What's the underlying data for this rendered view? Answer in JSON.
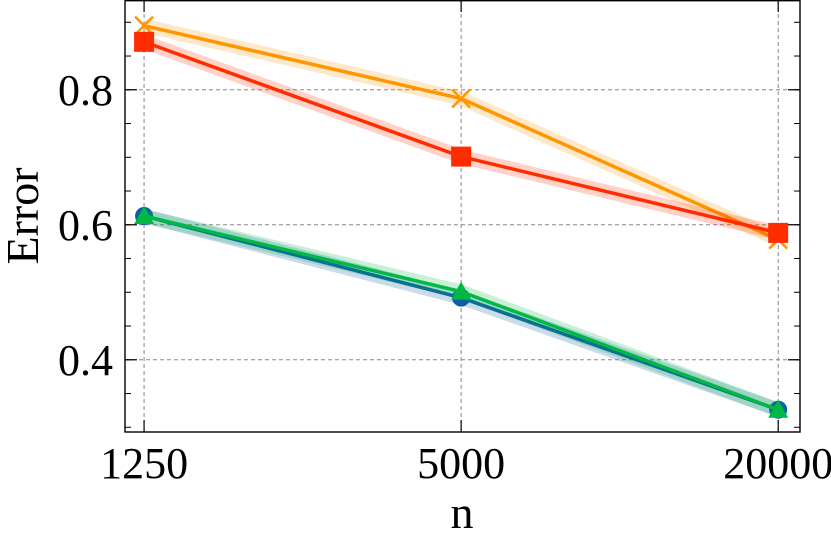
{
  "chart_data": {
    "type": "line",
    "title": "",
    "xlabel": "n",
    "ylabel": "Error",
    "x": [
      1250,
      5000,
      20000
    ],
    "x_tick_labels": [
      "1250",
      "5000",
      "20000"
    ],
    "x_scale": "log",
    "xlim": [
      1150,
      22000
    ],
    "ylim": [
      0.293,
      0.933
    ],
    "y_ticks": [
      0.4,
      0.6,
      0.8
    ],
    "y_tick_labels": [
      "0.4",
      "0.6",
      "0.8"
    ],
    "grid": true,
    "series": [
      {
        "name": "orange-x",
        "color": "#ff9500",
        "marker": "x",
        "values": [
          0.895,
          0.787,
          0.578
        ]
      },
      {
        "name": "red-square",
        "color": "#ff2c00",
        "marker": "square",
        "values": [
          0.871,
          0.701,
          0.588
        ]
      },
      {
        "name": "blue-circle",
        "color": "#0c5da5",
        "marker": "circle",
        "values": [
          0.613,
          0.492,
          0.326
        ]
      },
      {
        "name": "green-triangle",
        "color": "#00b945",
        "marker": "triangle",
        "values": [
          0.613,
          0.501,
          0.326
        ]
      }
    ]
  }
}
